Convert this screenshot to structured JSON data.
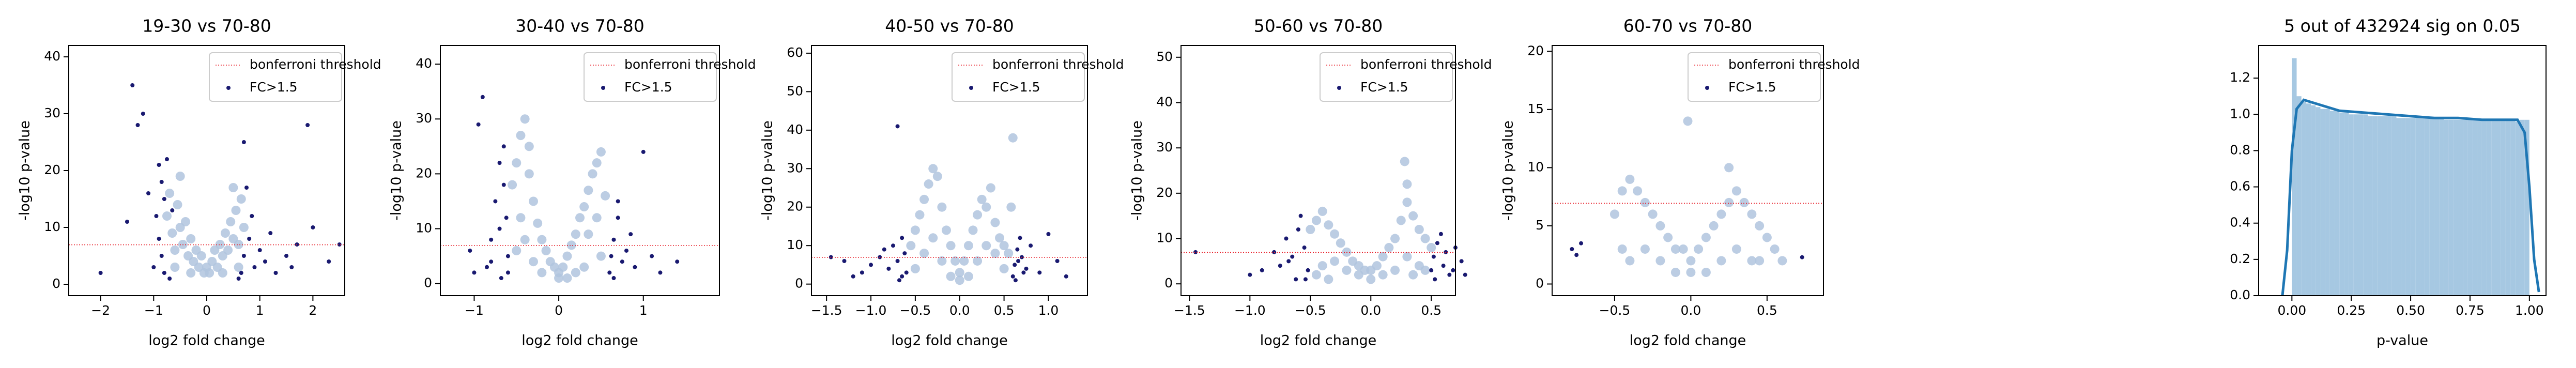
{
  "chart_data": [
    {
      "type": "scatter",
      "title": "19-30 vs 70-80",
      "xlabel": "log2 fold change",
      "ylabel": "-log10 p-value",
      "xlim": [
        -2.6,
        2.6
      ],
      "ylim": [
        -2,
        42
      ],
      "xticks": [
        {
          "value": -2,
          "label": "−2"
        },
        {
          "value": -1,
          "label": "−1"
        },
        0,
        1,
        2
      ],
      "yticks": [
        0,
        10,
        20,
        30,
        40
      ],
      "hline": {
        "name": "bonferroni threshold",
        "value": 6.94,
        "color": "#e8202a"
      },
      "series": [
        {
          "color": "#b0c4de",
          "x": [
            -0.75,
            -0.7,
            -0.65,
            -0.6,
            -0.55,
            -0.5,
            -0.45,
            -0.4,
            -0.35,
            -0.3,
            -0.25,
            -0.2,
            -0.15,
            -0.1,
            -0.05,
            0,
            0.05,
            0.1,
            0.15,
            0.2,
            0.25,
            0.3,
            0.35,
            0.4,
            0.45,
            0.5,
            0.55,
            0.6,
            0.65,
            0.7,
            -0.5,
            0.5,
            -0.3,
            0.3,
            -0.6,
            0.6
          ],
          "values": [
            12,
            16,
            9,
            6,
            14,
            10,
            7,
            11,
            5,
            8,
            4,
            6,
            3,
            5,
            2,
            3,
            2,
            4,
            6,
            3,
            7,
            5,
            9,
            6,
            11,
            8,
            13,
            7,
            15,
            10,
            19,
            17,
            2,
            2,
            3,
            3
          ]
        },
        {
          "name": "FC>1.5",
          "color": "#191970",
          "x": [
            -0.9,
            -0.85,
            -0.8,
            -0.75,
            -0.95,
            -0.9,
            -0.85,
            -0.8,
            -0.7,
            -1.0,
            -1.1,
            -1.2,
            -1.4,
            -1.3,
            -2.0,
            -1.5,
            -0.65,
            0.65,
            0.7,
            0.8,
            0.9,
            1.0,
            1.1,
            1.2,
            1.3,
            1.5,
            1.7,
            2.0,
            1.9,
            0.7,
            0.75,
            0.85,
            1.6,
            2.3,
            2.5,
            0.6
          ],
          "values": [
            21,
            18,
            15,
            22,
            12,
            8,
            5,
            2,
            1,
            3,
            16,
            30,
            35,
            28,
            2,
            11,
            13,
            2,
            5,
            8,
            3,
            6,
            4,
            9,
            2,
            5,
            7,
            10,
            28,
            25,
            17,
            12,
            3,
            4,
            7,
            1
          ]
        }
      ]
    },
    {
      "type": "scatter",
      "title": "30-40 vs 70-80",
      "xlabel": "log2 fold change",
      "ylabel": "-log10 p-value",
      "xlim": [
        -1.4,
        1.9
      ],
      "ylim": [
        -2.2,
        43.4
      ],
      "xticks": [
        {
          "value": -1,
          "label": "−1"
        },
        0,
        1
      ],
      "yticks": [
        0,
        10,
        20,
        30,
        40
      ],
      "hline": {
        "name": "bonferroni threshold",
        "value": 6.94,
        "color": "#e8202a"
      },
      "series": [
        {
          "color": "#b0c4de",
          "x": [
            -0.55,
            -0.5,
            -0.45,
            -0.4,
            -0.35,
            -0.3,
            -0.25,
            -0.2,
            -0.15,
            -0.1,
            -0.05,
            0,
            0.05,
            0.1,
            0.15,
            0.2,
            0.25,
            0.3,
            0.35,
            0.4,
            0.45,
            0.5,
            0.55,
            -0.45,
            -0.4,
            -0.35,
            0.35,
            0.45,
            -0.5,
            0.5,
            -0.2,
            0.2,
            0,
            -0.3,
            0.3,
            0.1
          ],
          "values": [
            18,
            22,
            27,
            30,
            20,
            15,
            11,
            8,
            6,
            4,
            3,
            2,
            3,
            5,
            7,
            9,
            12,
            14,
            17,
            20,
            22,
            24,
            16,
            12,
            8,
            25,
            9,
            12,
            6,
            5,
            2,
            2,
            1,
            4,
            3,
            1
          ]
        },
        {
          "name": "FC>1.5",
          "color": "#191970",
          "x": [
            -0.6,
            -0.62,
            -0.65,
            -0.7,
            -0.75,
            -0.8,
            -0.85,
            -0.9,
            -0.95,
            -1.05,
            -0.6,
            -0.65,
            -0.7,
            -0.8,
            -1.0,
            0.6,
            0.62,
            0.65,
            0.7,
            0.75,
            0.8,
            0.9,
            1.0,
            1.1,
            1.2,
            1.4,
            0.65,
            0.7,
            0.85,
            -0.68
          ],
          "values": [
            5,
            12,
            18,
            22,
            15,
            8,
            3,
            34,
            29,
            6,
            2,
            25,
            10,
            4,
            2,
            2,
            5,
            8,
            12,
            4,
            6,
            3,
            24,
            5,
            2,
            4,
            1,
            15,
            9,
            1
          ]
        }
      ]
    },
    {
      "type": "scatter",
      "title": "40-50 vs 70-80",
      "xlabel": "log2 fold change",
      "ylabel": "-log10 p-value",
      "xlim": [
        -1.67,
        1.44
      ],
      "ylim": [
        -3,
        62
      ],
      "xticks": [
        {
          "value": -1.5,
          "label": "−1.5"
        },
        {
          "value": -1,
          "label": "−1.0"
        },
        {
          "value": -0.5,
          "label": "−0.5"
        },
        {
          "value": 0,
          "label": "0.0"
        },
        0.5,
        {
          "value": 1,
          "label": "1.0"
        }
      ],
      "yticks": [
        0,
        10,
        20,
        30,
        40,
        50,
        60
      ],
      "hline": {
        "name": "bonferroni threshold",
        "value": 6.94,
        "color": "#e8202a"
      },
      "series": [
        {
          "color": "#b0c4de",
          "x": [
            -0.55,
            -0.5,
            -0.45,
            -0.4,
            -0.35,
            -0.3,
            -0.25,
            -0.2,
            -0.15,
            -0.1,
            -0.05,
            0,
            0.05,
            0.1,
            0.15,
            0.2,
            0.25,
            0.3,
            0.35,
            0.4,
            0.45,
            0.5,
            0.55,
            0.6,
            -0.4,
            -0.3,
            -0.2,
            0.2,
            0.3,
            0.4,
            0.5,
            -0.5,
            0,
            0.1,
            -0.1,
            0.58
          ],
          "values": [
            10,
            14,
            18,
            22,
            26,
            30,
            28,
            20,
            14,
            10,
            6,
            3,
            6,
            10,
            14,
            18,
            22,
            20,
            25,
            16,
            12,
            10,
            8,
            38,
            8,
            12,
            6,
            6,
            10,
            8,
            4,
            4,
            1,
            2,
            2,
            20
          ]
        },
        {
          "name": "FC>1.5",
          "color": "#191970",
          "x": [
            -0.6,
            -0.62,
            -0.65,
            -0.7,
            -0.75,
            -0.8,
            -0.9,
            -1.0,
            -1.1,
            -1.2,
            -1.3,
            -1.45,
            -0.7,
            -0.65,
            -0.85,
            0.6,
            0.62,
            0.65,
            0.68,
            0.7,
            0.75,
            0.8,
            0.9,
            1.0,
            1.1,
            1.2,
            0.63,
            0.66,
            -0.68,
            0.72
          ],
          "values": [
            3,
            8,
            12,
            6,
            10,
            4,
            7,
            5,
            3,
            2,
            6,
            7,
            41,
            2,
            9,
            2,
            5,
            9,
            12,
            7,
            4,
            10,
            3,
            13,
            6,
            2,
            1,
            6,
            1,
            3
          ]
        }
      ]
    },
    {
      "type": "scatter",
      "title": "50-60 vs 70-80",
      "xlabel": "log2 fold change",
      "ylabel": "-log10 p-value",
      "xlim": [
        -1.57,
        0.7
      ],
      "ylim": [
        -2.6,
        52.6
      ],
      "xticks": [
        {
          "value": -1.5,
          "label": "−1.5"
        },
        {
          "value": -1,
          "label": "−1.0"
        },
        {
          "value": -0.5,
          "label": "−0.5"
        },
        {
          "value": 0,
          "label": "0.0"
        },
        0.5
      ],
      "yticks": [
        0,
        10,
        20,
        30,
        40,
        50
      ],
      "hline": {
        "name": "bonferroni threshold",
        "value": 6.94,
        "color": "#e8202a"
      },
      "series": [
        {
          "color": "#b0c4de",
          "x": [
            -0.5,
            -0.45,
            -0.4,
            -0.35,
            -0.3,
            -0.25,
            -0.2,
            -0.15,
            -0.1,
            -0.05,
            0,
            0.05,
            0.1,
            0.15,
            0.2,
            0.25,
            0.3,
            0.35,
            0.4,
            0.45,
            0.5,
            -0.4,
            -0.3,
            -0.2,
            -0.1,
            0.1,
            0.2,
            0.3,
            0.4,
            -0.45,
            0.45,
            0,
            0.3,
            -0.35,
            0.35,
            0.28
          ],
          "values": [
            12,
            14,
            16,
            13,
            11,
            9,
            7,
            5,
            4,
            3,
            3,
            4,
            6,
            8,
            10,
            14,
            18,
            15,
            12,
            10,
            8,
            4,
            5,
            3,
            2,
            2,
            3,
            6,
            4,
            2,
            3,
            1,
            22,
            1,
            2,
            27
          ]
        },
        {
          "name": "FC>1.5",
          "color": "#191970",
          "x": [
            -0.52,
            -0.55,
            -0.6,
            -0.65,
            -0.7,
            -0.75,
            -0.8,
            -0.9,
            -1.0,
            -1.45,
            -0.58,
            -0.62,
            -0.68,
            0.5,
            0.52,
            0.55,
            0.6,
            0.65,
            0.7,
            0.75,
            0.78,
            0.53,
            0.58,
            0.62,
            -0.54,
            0.68
          ],
          "values": [
            3,
            8,
            12,
            6,
            10,
            4,
            7,
            3,
            2,
            7,
            15,
            1,
            5,
            3,
            6,
            9,
            4,
            2,
            8,
            5,
            2,
            1,
            11,
            7,
            1,
            3
          ]
        }
      ]
    },
    {
      "type": "scatter",
      "title": "60-70 vs 70-80",
      "xlabel": "log2 fold change",
      "ylabel": "-log10 p-value",
      "xlim": [
        -0.91,
        0.87
      ],
      "ylim": [
        -1,
        20.5
      ],
      "xticks": [
        {
          "value": -0.5,
          "label": "−0.5"
        },
        {
          "value": 0,
          "label": "0.0"
        },
        0.5
      ],
      "yticks": [
        0,
        5,
        10,
        15,
        20
      ],
      "hline": {
        "name": "bonferroni threshold",
        "value": 6.94,
        "color": "#e8202a"
      },
      "series": [
        {
          "color": "#b0c4de",
          "x": [
            -0.5,
            -0.45,
            -0.4,
            -0.35,
            -0.3,
            -0.25,
            -0.2,
            -0.15,
            -0.1,
            -0.05,
            0,
            0.05,
            0.1,
            0.15,
            0.2,
            0.25,
            0.3,
            0.35,
            0.4,
            0.45,
            0.5,
            0.55,
            -0.4,
            -0.3,
            -0.2,
            -0.1,
            0.1,
            0.2,
            0.3,
            0.4,
            -0.45,
            0.45,
            0,
            -0.02,
            0.25,
            0.6
          ],
          "values": [
            6,
            8,
            9,
            8,
            7,
            6,
            5,
            4,
            3,
            3,
            2,
            3,
            4,
            5,
            6,
            7,
            8,
            7,
            6,
            5,
            4,
            3,
            2,
            3,
            2,
            1,
            1,
            2,
            3,
            2,
            3,
            2,
            1,
            14,
            10,
            2
          ]
        },
        {
          "name": "FC>1.5",
          "color": "#191970",
          "x": [
            -0.78,
            -0.72,
            -0.75,
            0.73
          ],
          "values": [
            3,
            3.5,
            2.5,
            2.3
          ]
        }
      ]
    },
    {
      "type": "histogram",
      "title": "5 out of 432924 sig on 0.05",
      "xlabel": "p-value",
      "color": "#a6c8e2",
      "xlim": [
        -0.14,
        1.07
      ],
      "ylim": [
        0,
        1.38
      ],
      "xticks": [
        {
          "value": 0,
          "label": "0.00"
        },
        0.25,
        {
          "value": 0.5,
          "label": "0.50"
        },
        0.75,
        {
          "value": 1,
          "label": "1.00"
        }
      ],
      "yticks": [
        {
          "value": 0,
          "label": "0.0"
        },
        0.2,
        0.4,
        0.6,
        0.8,
        {
          "value": 1,
          "label": "1.0"
        },
        1.2
      ],
      "bins": [
        0,
        0.02,
        0.04,
        0.06,
        0.08,
        0.1,
        0.12,
        0.14,
        0.16,
        0.18,
        0.2,
        0.22,
        0.24,
        0.26,
        0.28,
        0.3,
        0.32,
        0.34,
        0.36,
        0.38,
        0.4,
        0.42,
        0.44,
        0.46,
        0.48,
        0.5,
        0.52,
        0.54,
        0.56,
        0.58,
        0.6,
        0.62,
        0.64,
        0.66,
        0.68,
        0.7,
        0.72,
        0.74,
        0.76,
        0.78,
        0.8,
        0.82,
        0.84,
        0.86,
        0.88,
        0.9,
        0.92,
        0.94,
        0.96,
        0.98,
        1.0
      ],
      "values": [
        1.31,
        1.1,
        1.07,
        1.06,
        1.05,
        1.04,
        1.03,
        1.03,
        1.02,
        1.02,
        1.01,
        1.01,
        1.0,
        1.0,
        1.0,
        1.0,
        0.99,
        0.99,
        0.99,
        0.99,
        0.99,
        0.99,
        0.98,
        0.98,
        0.98,
        0.98,
        0.98,
        0.98,
        0.98,
        0.98,
        0.98,
        0.98,
        0.97,
        0.97,
        0.97,
        0.97,
        0.97,
        0.97,
        0.97,
        0.97,
        0.97,
        0.97,
        0.97,
        0.97,
        0.97,
        0.97,
        0.97,
        0.96,
        0.97,
        0.97
      ],
      "kde": {
        "color": "#1f77b4",
        "x": [
          -0.04,
          -0.02,
          0,
          0.02,
          0.05,
          0.1,
          0.2,
          0.3,
          0.4,
          0.5,
          0.6,
          0.7,
          0.8,
          0.9,
          0.95,
          0.98,
          1.0,
          1.02,
          1.04
        ],
        "values": [
          0,
          0.25,
          0.8,
          1.03,
          1.08,
          1.06,
          1.02,
          1.01,
          1.0,
          0.99,
          0.98,
          0.98,
          0.97,
          0.97,
          0.97,
          0.9,
          0.6,
          0.2,
          0.02
        ]
      }
    }
  ]
}
